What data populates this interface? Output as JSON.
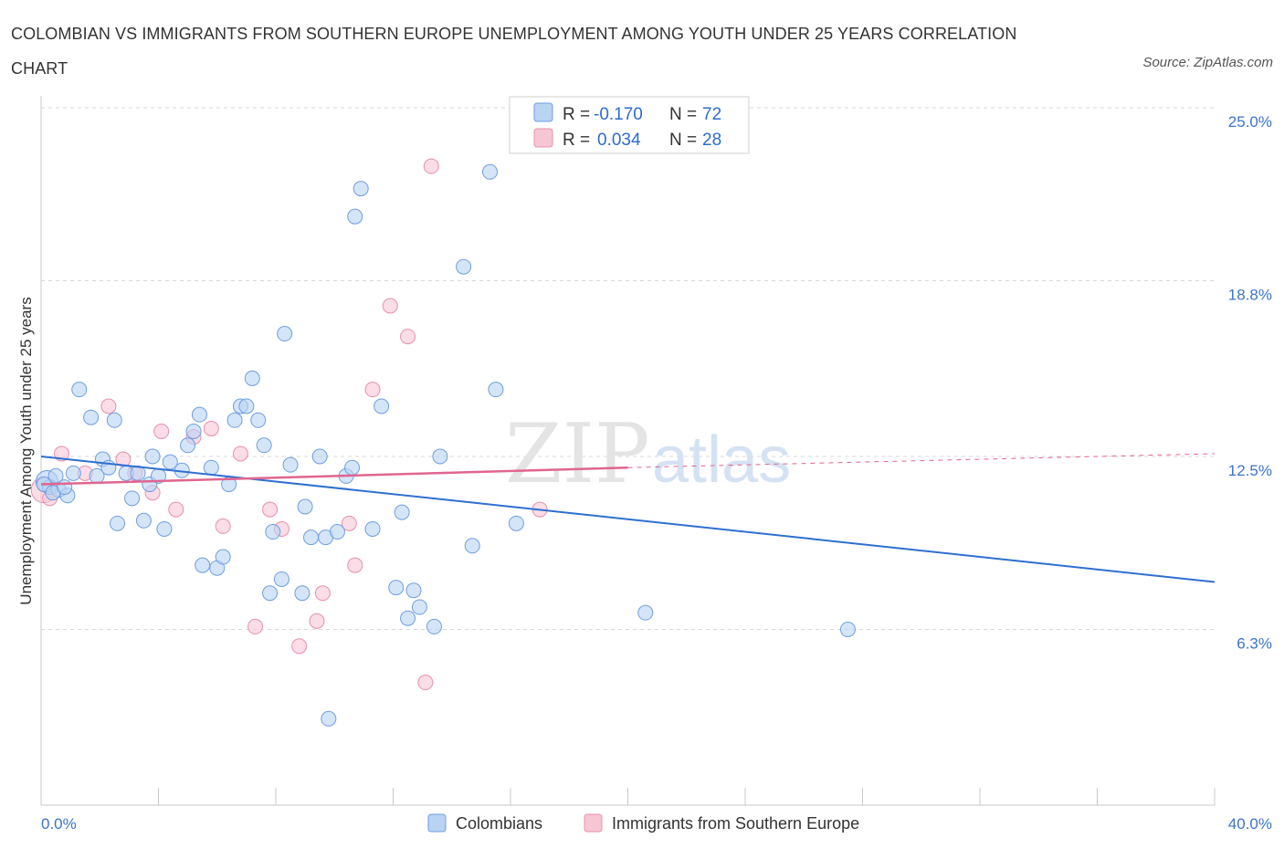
{
  "title": "COLOMBIAN VS IMMIGRANTS FROM SOUTHERN EUROPE UNEMPLOYMENT AMONG YOUTH UNDER 25 YEARS CORRELATION CHART",
  "source": "Source: ZipAtlas.com",
  "watermark": {
    "zip": "ZIP",
    "atlas": "atlas"
  },
  "colors": {
    "blue_fill": "#b9d3f3",
    "blue_stroke": "#6f9ee0",
    "blue_line": "#2f6fd0",
    "pink_fill": "#f7c6d5",
    "pink_stroke": "#e890ab",
    "pink_line": "#e0658f",
    "grid": "#d8d8d8",
    "axis_text": "#3d74c9"
  },
  "legend_stats": [
    {
      "r_label": "R =",
      "r_value": "-0.170",
      "n_label": "N =",
      "n_value": "72"
    },
    {
      "r_label": "R =",
      "r_value": "0.034",
      "n_label": "N =",
      "n_value": "28"
    }
  ],
  "chart_data": {
    "type": "scatter",
    "title": "COLOMBIAN VS IMMIGRANTS FROM SOUTHERN EUROPE UNEMPLOYMENT AMONG YOUTH UNDER 25 YEARS CORRELATION CHART",
    "xlabel": "",
    "ylabel": "Unemployment Among Youth under 25 years",
    "xlim": [
      0,
      40
    ],
    "ylim": [
      0,
      25
    ],
    "x_tick_labels": [
      {
        "value": 0,
        "label": "0.0%"
      },
      {
        "value": 40,
        "label": "40.0%"
      }
    ],
    "y_tick_labels": [
      {
        "value": 6.3,
        "label": "6.3%"
      },
      {
        "value": 12.5,
        "label": "12.5%"
      },
      {
        "value": 18.8,
        "label": "18.8%"
      },
      {
        "value": 25.0,
        "label": "25.0%"
      }
    ],
    "series": [
      {
        "name": "Colombians",
        "r": -0.17,
        "n": 72,
        "trend": {
          "x": [
            0,
            40
          ],
          "y": [
            12.5,
            8.0
          ]
        },
        "points": [
          [
            0.2,
            11.6
          ],
          [
            0.3,
            11.4
          ],
          [
            0.5,
            11.8
          ],
          [
            0.6,
            11.3
          ],
          [
            0.9,
            11.1
          ],
          [
            1.1,
            11.9
          ],
          [
            1.3,
            14.9
          ],
          [
            1.7,
            13.9
          ],
          [
            1.9,
            11.8
          ],
          [
            2.1,
            12.4
          ],
          [
            2.3,
            12.1
          ],
          [
            2.5,
            13.8
          ],
          [
            2.6,
            10.1
          ],
          [
            2.9,
            11.9
          ],
          [
            3.1,
            11.0
          ],
          [
            3.3,
            11.9
          ],
          [
            3.5,
            10.2
          ],
          [
            3.7,
            11.5
          ],
          [
            3.8,
            12.5
          ],
          [
            4.0,
            11.8
          ],
          [
            4.2,
            9.9
          ],
          [
            4.4,
            12.3
          ],
          [
            4.8,
            12.0
          ],
          [
            5.0,
            12.9
          ],
          [
            5.2,
            13.4
          ],
          [
            5.4,
            14.0
          ],
          [
            5.5,
            8.6
          ],
          [
            5.8,
            12.1
          ],
          [
            6.0,
            8.5
          ],
          [
            6.2,
            8.9
          ],
          [
            6.4,
            11.5
          ],
          [
            6.6,
            13.8
          ],
          [
            6.8,
            14.3
          ],
          [
            7.0,
            14.3
          ],
          [
            7.2,
            15.3
          ],
          [
            7.4,
            13.8
          ],
          [
            7.6,
            12.9
          ],
          [
            7.8,
            7.6
          ],
          [
            7.9,
            9.8
          ],
          [
            8.2,
            8.1
          ],
          [
            8.3,
            16.9
          ],
          [
            8.5,
            12.2
          ],
          [
            8.9,
            7.6
          ],
          [
            9.0,
            10.7
          ],
          [
            9.2,
            9.6
          ],
          [
            9.5,
            12.5
          ],
          [
            9.7,
            9.6
          ],
          [
            9.8,
            3.1
          ],
          [
            10.1,
            9.8
          ],
          [
            10.4,
            11.8
          ],
          [
            10.6,
            12.1
          ],
          [
            10.7,
            21.1
          ],
          [
            10.9,
            22.1
          ],
          [
            11.3,
            9.9
          ],
          [
            11.6,
            14.3
          ],
          [
            12.1,
            7.8
          ],
          [
            12.3,
            10.5
          ],
          [
            12.5,
            6.7
          ],
          [
            12.7,
            7.7
          ],
          [
            12.9,
            7.1
          ],
          [
            13.4,
            6.4
          ],
          [
            13.6,
            12.5
          ],
          [
            14.4,
            19.3
          ],
          [
            14.7,
            9.3
          ],
          [
            15.3,
            22.7
          ],
          [
            15.5,
            14.9
          ],
          [
            16.2,
            10.1
          ],
          [
            20.6,
            6.9
          ],
          [
            27.5,
            6.3
          ],
          [
            0.1,
            11.5
          ],
          [
            0.4,
            11.2
          ],
          [
            0.8,
            11.4
          ]
        ]
      },
      {
        "name": "Immigrants from Southern Europe",
        "r": 0.034,
        "n": 28,
        "trend": {
          "x": [
            0,
            20
          ],
          "y": [
            11.5,
            12.1
          ]
        },
        "trend_extension": {
          "x": [
            20,
            40
          ],
          "y": [
            12.1,
            12.6
          ]
        },
        "points": [
          [
            0.1,
            11.3
          ],
          [
            0.7,
            12.6
          ],
          [
            1.5,
            11.9
          ],
          [
            2.3,
            14.3
          ],
          [
            2.8,
            12.4
          ],
          [
            3.2,
            11.9
          ],
          [
            3.8,
            11.2
          ],
          [
            4.1,
            13.4
          ],
          [
            4.6,
            10.6
          ],
          [
            5.2,
            13.2
          ],
          [
            5.8,
            13.5
          ],
          [
            6.2,
            10.0
          ],
          [
            6.8,
            12.6
          ],
          [
            7.3,
            6.4
          ],
          [
            7.8,
            10.6
          ],
          [
            8.2,
            9.9
          ],
          [
            8.8,
            5.7
          ],
          [
            9.4,
            6.6
          ],
          [
            9.6,
            7.6
          ],
          [
            10.5,
            10.1
          ],
          [
            10.7,
            8.6
          ],
          [
            11.3,
            14.9
          ],
          [
            11.9,
            17.9
          ],
          [
            12.5,
            16.8
          ],
          [
            13.1,
            4.4
          ],
          [
            13.3,
            22.9
          ],
          [
            17.0,
            10.6
          ],
          [
            0.3,
            11.0
          ]
        ]
      }
    ]
  },
  "bottom_legend": [
    {
      "label": "Colombians"
    },
    {
      "label": "Immigrants from Southern Europe"
    }
  ]
}
